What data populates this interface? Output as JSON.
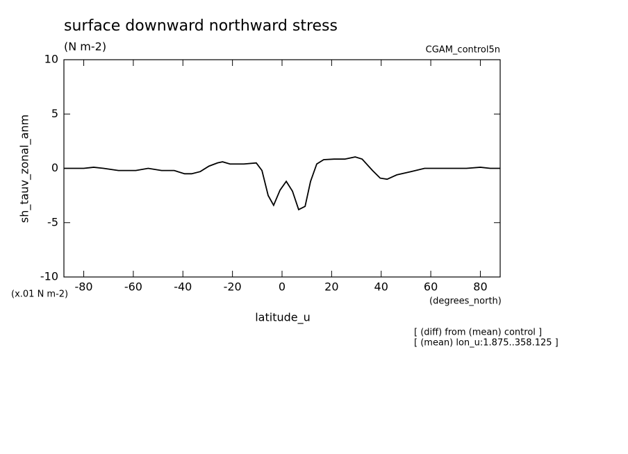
{
  "chart_data": {
    "type": "line",
    "title": "surface downward northward stress",
    "subtitle": "(N m-2)",
    "dataset": "CGAM_control5n",
    "y_label": "sh_tauv_zonal_anm",
    "y_units": "(x.01 N m-2)",
    "x_label": "latitude_u",
    "x_units": "(degrees_north)",
    "annotations": [
      "[ (diff) from (mean) control ]",
      "[ (mean) lon_u:1.875..358.125 ]"
    ],
    "x": [
      -88,
      -80,
      -76,
      -72,
      -66,
      -59,
      -54,
      -48.6,
      -43.5,
      -39.3,
      -36.5,
      -33,
      -29.5,
      -26,
      -24,
      -21,
      -15.4,
      -10.4,
      -8.1,
      -5.6,
      -3.4,
      -0.8,
      1.7,
      4.2,
      6.7,
      9.3,
      11.5,
      14,
      16.8,
      21,
      25.3,
      29.5,
      32.3,
      36.5,
      39.6,
      42.4,
      46.3,
      52,
      57.5,
      63,
      74.4,
      80,
      84,
      88
    ],
    "series": [
      {
        "color": "#000000",
        "values": [
          0,
          0,
          0.1,
          0,
          -0.2,
          -0.2,
          0,
          -0.2,
          -0.2,
          -0.5,
          -0.5,
          -0.3,
          0.2,
          0.5,
          0.6,
          0.4,
          0.4,
          0.5,
          -0.2,
          -2.5,
          -3.4,
          -2,
          -1.2,
          -2.1,
          -3.8,
          -3.5,
          -1.2,
          0.4,
          0.8,
          0.85,
          0.85,
          1.05,
          0.85,
          -0.2,
          -0.9,
          -1.0,
          -0.6,
          -0.3,
          0,
          0,
          0,
          0.1,
          0,
          0
        ]
      }
    ],
    "xlim": [
      -88,
      88
    ],
    "ylim": [
      -10,
      10
    ],
    "xticks": [
      -80,
      -60,
      -40,
      -20,
      0,
      20,
      40,
      60,
      80
    ],
    "yticks": [
      -10,
      -5,
      0,
      5,
      10
    ]
  }
}
